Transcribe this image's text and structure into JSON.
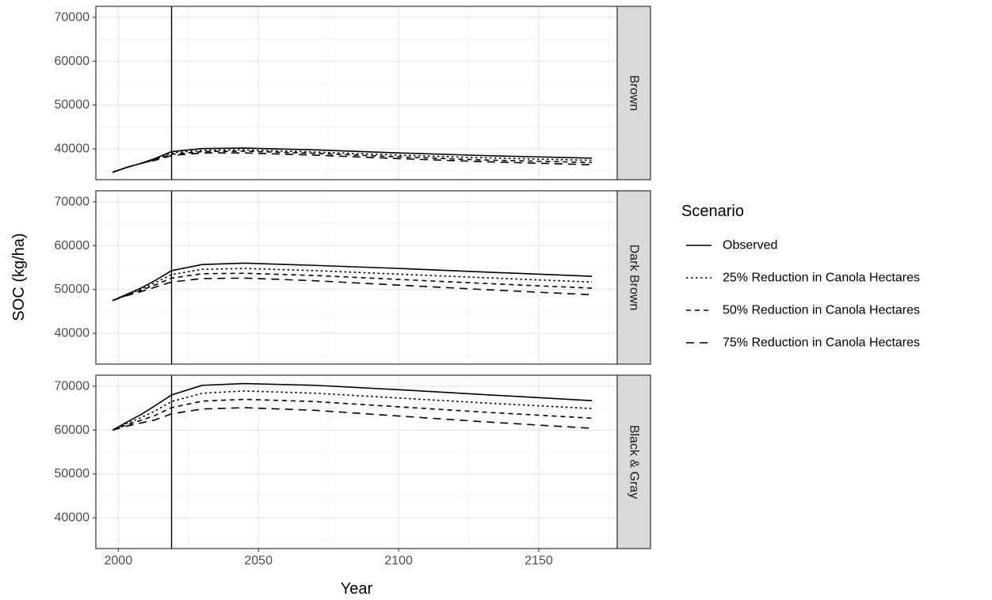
{
  "chart_data": {
    "type": "line",
    "layout": "faceted-vertical",
    "xlabel": "Year",
    "ylabel": "SOC (kg/ha)",
    "xlim": [
      1992,
      2178
    ],
    "ylim": [
      33000,
      72500
    ],
    "x_ticks": [
      2000,
      2050,
      2100,
      2150
    ],
    "y_ticks": [
      40000,
      50000,
      60000,
      70000
    ],
    "grid": true,
    "reference_line": {
      "x": 2019
    },
    "legend": {
      "title": "Scenario",
      "position": "right",
      "entries": [
        {
          "label": "Observed",
          "linetype": "solid"
        },
        {
          "label": "25% Reduction in Canola Hectares",
          "linetype": "dotted"
        },
        {
          "label": "50% Reduction in Canola Hectares",
          "linetype": "dashed-short"
        },
        {
          "label": "75% Reduction in Canola Hectares",
          "linetype": "dashed-long"
        }
      ]
    },
    "panels": [
      {
        "strip": "Brown",
        "series": [
          {
            "name": "Observed",
            "x": [
              1998,
              2003,
              2008,
              2013,
              2019,
              2030,
              2045,
              2070,
              2100,
              2130,
              2169
            ],
            "y": [
              34700,
              35800,
              36700,
              37800,
              39400,
              40100,
              40200,
              39800,
              39100,
              38500,
              37900
            ]
          },
          {
            "name": "25% Reduction in Canola Hectares",
            "x": [
              1998,
              2003,
              2008,
              2013,
              2019,
              2030,
              2045,
              2070,
              2100,
              2130,
              2169
            ],
            "y": [
              34700,
              35800,
              36700,
              37600,
              39100,
              39700,
              39800,
              39300,
              38600,
              38000,
              37400
            ]
          },
          {
            "name": "50% Reduction in Canola Hectares",
            "x": [
              1998,
              2003,
              2008,
              2013,
              2019,
              2030,
              2045,
              2070,
              2100,
              2130,
              2169
            ],
            "y": [
              34700,
              35800,
              36700,
              37500,
              38800,
              39400,
              39500,
              39000,
              38200,
              37500,
              36900
            ]
          },
          {
            "name": "75% Reduction in Canola Hectares",
            "x": [
              1998,
              2003,
              2008,
              2013,
              2019,
              2030,
              2045,
              2070,
              2100,
              2130,
              2169
            ],
            "y": [
              34700,
              35800,
              36700,
              37400,
              38500,
              39100,
              39100,
              38600,
              37800,
              37100,
              36400
            ]
          }
        ]
      },
      {
        "strip": "Dark Brown",
        "series": [
          {
            "name": "Observed",
            "x": [
              1998,
              2003,
              2008,
              2013,
              2019,
              2030,
              2045,
              2070,
              2100,
              2130,
              2169
            ],
            "y": [
              47500,
              48900,
              50300,
              52000,
              54300,
              55700,
              56000,
              55500,
              54800,
              54000,
              53000
            ]
          },
          {
            "name": "25% Reduction in Canola Hectares",
            "x": [
              1998,
              2003,
              2008,
              2013,
              2019,
              2030,
              2045,
              2070,
              2100,
              2130,
              2169
            ],
            "y": [
              47500,
              48800,
              50000,
              51500,
              53400,
              54600,
              54800,
              54300,
              53500,
              52700,
              51700
            ]
          },
          {
            "name": "50% Reduction in Canola Hectares",
            "x": [
              1998,
              2003,
              2008,
              2013,
              2019,
              2030,
              2045,
              2070,
              2100,
              2130,
              2169
            ],
            "y": [
              47500,
              48700,
              49800,
              51000,
              52600,
              53600,
              53700,
              53200,
              52300,
              51400,
              50300
            ]
          },
          {
            "name": "75% Reduction in Canola Hectares",
            "x": [
              1998,
              2003,
              2008,
              2013,
              2019,
              2030,
              2045,
              2070,
              2100,
              2130,
              2169
            ],
            "y": [
              47500,
              48600,
              49500,
              50500,
              51700,
              52500,
              52600,
              52000,
              51000,
              50000,
              48800
            ]
          }
        ]
      },
      {
        "strip": "Black & Gray",
        "series": [
          {
            "name": "Observed",
            "x": [
              1998,
              2003,
              2008,
              2013,
              2019,
              2030,
              2045,
              2070,
              2100,
              2130,
              2169
            ],
            "y": [
              60000,
              61800,
              63500,
              65500,
              68000,
              70200,
              70600,
              70200,
              69200,
              68100,
              66700
            ]
          },
          {
            "name": "25% Reduction in Canola Hectares",
            "x": [
              1998,
              2003,
              2008,
              2013,
              2019,
              2030,
              2045,
              2070,
              2100,
              2130,
              2169
            ],
            "y": [
              60000,
              61500,
              62800,
              64300,
              66500,
              68400,
              68900,
              68400,
              67300,
              66200,
              64900
            ]
          },
          {
            "name": "50% Reduction in Canola Hectares",
            "x": [
              1998,
              2003,
              2008,
              2013,
              2019,
              2030,
              2045,
              2070,
              2100,
              2130,
              2169
            ],
            "y": [
              60000,
              61200,
              62200,
              63300,
              65100,
              66600,
              67000,
              66500,
              65300,
              64100,
              62700
            ]
          },
          {
            "name": "75% Reduction in Canola Hectares",
            "x": [
              1998,
              2003,
              2008,
              2013,
              2019,
              2030,
              2045,
              2070,
              2100,
              2130,
              2169
            ],
            "y": [
              60000,
              60900,
              61600,
              62300,
              63700,
              64800,
              65100,
              64500,
              63200,
              61900,
              60400
            ]
          }
        ]
      }
    ]
  }
}
